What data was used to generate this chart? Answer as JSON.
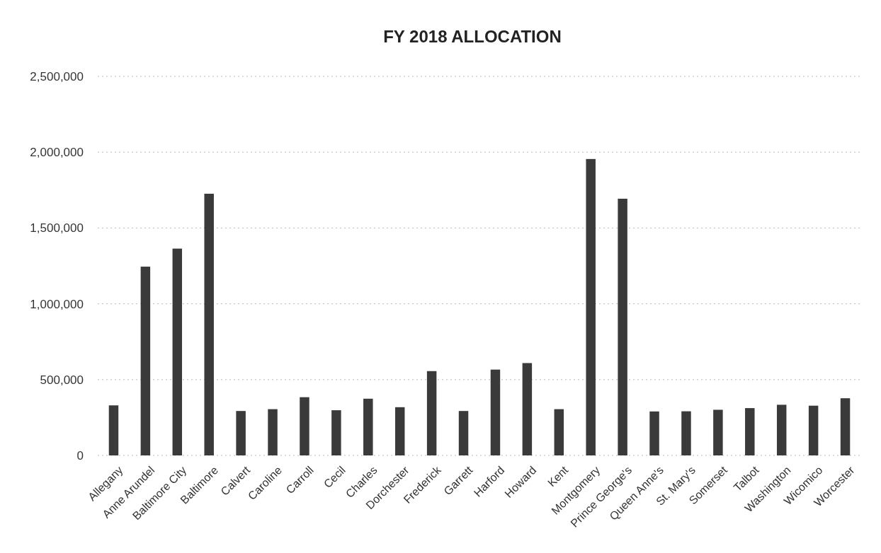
{
  "chart_data": {
    "type": "bar",
    "title": "FY 2018 ALLOCATION",
    "categories": [
      "Allegany",
      "Anne Arundel",
      "Baltimore City",
      "Baltimore",
      "Calvert",
      "Caroline",
      "Carroll",
      "Cecil",
      "Charles",
      "Dorchester",
      "Frederick",
      "Garrett",
      "Harford",
      "Howard",
      "Kent",
      "Montgomery",
      "Prince George's",
      "Queen Anne's",
      "St. Mary's",
      "Somerset",
      "Talbot",
      "Washington",
      "Wicomico",
      "Worcester"
    ],
    "values": [
      330000,
      1245000,
      1364000,
      1726000,
      293000,
      305000,
      384000,
      298000,
      374000,
      318000,
      556000,
      293000,
      566000,
      609000,
      305000,
      1955000,
      1693000,
      290000,
      291000,
      301000,
      312000,
      334000,
      328000,
      377000
    ],
    "color": "#3a3a3a",
    "ylim": [
      0,
      2500000
    ],
    "yticks": [
      {
        "value": 0,
        "label": "0"
      },
      {
        "value": 500000,
        "label": "500,000"
      },
      {
        "value": 1000000,
        "label": "1,000,000"
      },
      {
        "value": 1500000,
        "label": "1,500,000"
      },
      {
        "value": 2000000,
        "label": "2,000,000"
      },
      {
        "value": 2500000,
        "label": "2,500,000"
      }
    ],
    "grid": "y"
  }
}
